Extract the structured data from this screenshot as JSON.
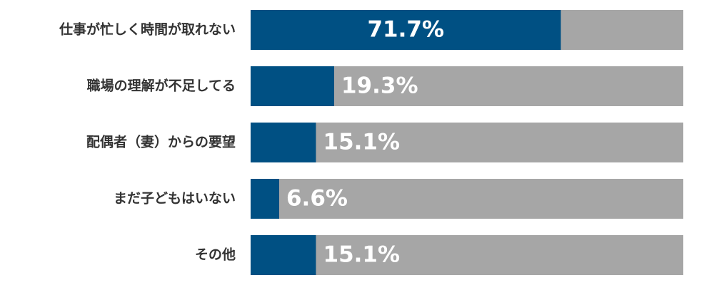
{
  "chart_data": {
    "type": "hbar",
    "categories": [
      "仕事が忙しく時間が取れない",
      "職場の理解が不足してる",
      "配偶者（妻）からの要望",
      "まだ子どもはいない",
      "その他"
    ],
    "values": [
      71.7,
      19.3,
      15.1,
      6.6,
      15.1
    ],
    "value_labels": [
      "71.7%",
      "19.3%",
      "15.1%",
      "6.6%",
      "15.1%"
    ],
    "color": "#005083",
    "track_color": "#a6a6a6",
    "xlim": [
      0,
      100
    ]
  }
}
